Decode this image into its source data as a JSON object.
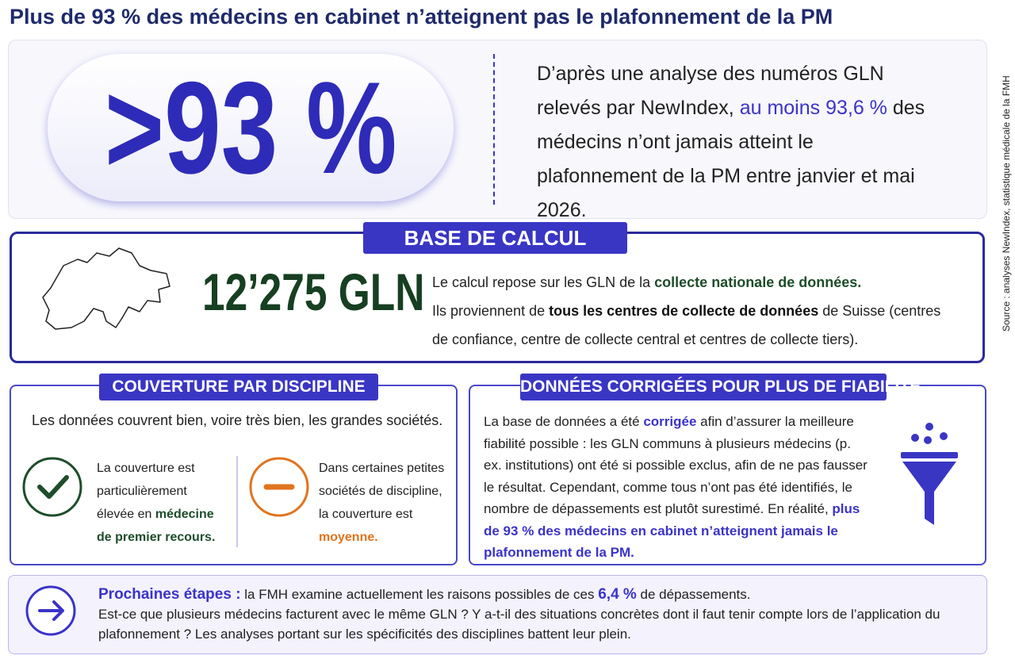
{
  "title": "Plus de 93 % des médecins en cabinet n’atteignent pas le plafonnement de la PM",
  "source": "Source : analyses NewIndex, statistique médicale de la FMH",
  "hero": {
    "big": ">93 %",
    "text": [
      "D’après une analyse des numéros GLN relevés par NewIndex, ",
      "au moins 93,6 %",
      " des médecins n’ont jamais atteint le plafonnement de la PM entre janvier et mai 2026."
    ]
  },
  "base": {
    "title": "BASE DE CALCUL",
    "figure": "12’275 GLN",
    "line1": [
      "Le calcul repose sur les GLN de la ",
      "collecte nationale de données."
    ],
    "line2": [
      "Ils proviennent de ",
      "tous les centres de collecte de données",
      " de Suisse (centres de confiance, centre de collecte central et centres de collecte tiers)."
    ]
  },
  "coverage": {
    "title": "COUVERTURE PAR DISCIPLINE",
    "intro": "Les données couvrent bien, voire très bien, les grandes sociétés.",
    "high": [
      "La couverture est particulièrement élevée en ",
      "médecine de premier recours."
    ],
    "medium": [
      "Dans certaines petites sociétés de discipline, la couverture est ",
      "moyenne."
    ]
  },
  "corrected": {
    "title": "DONNÉES CORRIGÉES POUR PLUS DE FIABILITÉ",
    "text": [
      "La base de données a été ",
      "corrigée",
      " afin d’assurer la meilleure fiabilité possible : les GLN communs à plusieurs médecins (p. ex. institutions) ont été si possible exclus, afin de ne pas fausser le résultat. Cependant, comme tous n’ont pas été identifiés, le nombre de dépassements est plutôt surestimé. En réalité, ",
      "plus de 93 % des médecins en cabinet n’atteignent jamais le plafonnement de la PM."
    ]
  },
  "next": {
    "label": "Prochaines étapes :",
    "line1": [
      " la FMH examine actuellement les raisons possibles de ces ",
      "6,4 %",
      " de dépassements."
    ],
    "line2": "Est-ce que plusieurs médecins facturent avec le même GLN ? Y a-t-il des situations concrètes dont il faut tenir compte lors de l’application du plafonnement ? Les analyses portant sur les spécificités des disciplines battent leur plein."
  }
}
